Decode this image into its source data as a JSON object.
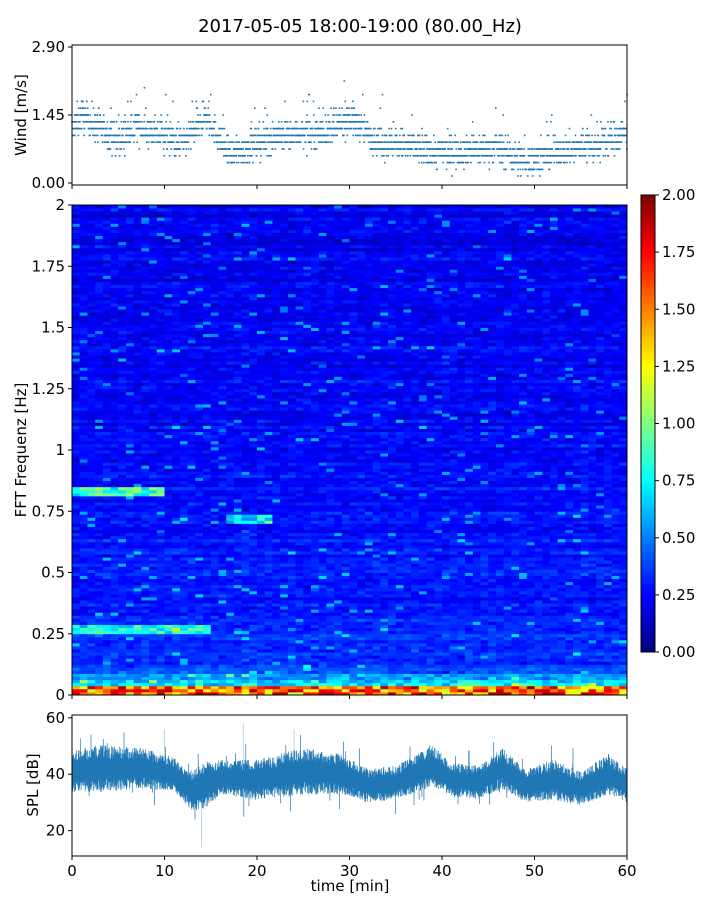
{
  "title": "2017-05-05 18:00-19:00 (80.00_Hz)",
  "colors": {
    "series": "#1f77b4",
    "colormap": "jet"
  },
  "chart_data": [
    {
      "id": "wind",
      "type": "scatter",
      "ylabel": "Wind [m/s]",
      "xlim": [
        0,
        60
      ],
      "ylim": [
        0,
        2.9
      ],
      "yticks": [
        "0.00",
        "1.45",
        "2.90"
      ],
      "grid": false,
      "series": [
        {
          "baseline_profile": [
            {
              "x": 0,
              "y": 1.1
            },
            {
              "x": 1,
              "y": 1.45
            },
            {
              "x": 5,
              "y": 0.9
            },
            {
              "x": 7,
              "y": 1.2
            },
            {
              "x": 12,
              "y": 0.85
            },
            {
              "x": 14.5,
              "y": 1.4
            },
            {
              "x": 17,
              "y": 0.6
            },
            {
              "x": 22,
              "y": 1.0
            },
            {
              "x": 28,
              "y": 1.1
            },
            {
              "x": 30,
              "y": 1.4
            },
            {
              "x": 33,
              "y": 0.9
            },
            {
              "x": 40,
              "y": 0.65
            },
            {
              "x": 46,
              "y": 0.75
            },
            {
              "x": 49,
              "y": 0.45
            },
            {
              "x": 52,
              "y": 0.65
            },
            {
              "x": 57,
              "y": 0.8
            },
            {
              "x": 60,
              "y": 1.1
            }
          ],
          "max_value": 2.9
        }
      ]
    },
    {
      "id": "spectrogram",
      "type": "heatmap",
      "ylabel": "FFT Frequenz [Hz]",
      "xlim": [
        0,
        60
      ],
      "ylim": [
        0,
        2
      ],
      "yticks": [
        "0",
        "0.25",
        "0.5",
        "0.75",
        "1",
        "1.25",
        "1.5",
        "1.75",
        "2"
      ],
      "colorbar": {
        "range": [
          0,
          2
        ],
        "ticks": [
          "0.00",
          "0.25",
          "0.50",
          "0.75",
          "1.00",
          "1.25",
          "1.50",
          "1.75",
          "2.00"
        ]
      },
      "features": [
        {
          "freq": 0.83,
          "t_start": 0,
          "t_end": 10,
          "level": 0.9
        },
        {
          "freq": 0.27,
          "t_start": 0,
          "t_end": 15,
          "level": 0.8
        },
        {
          "freq": 0.72,
          "t_start": 17,
          "t_end": 22,
          "level": 0.75
        },
        {
          "freq": 0.02,
          "t_start": 0,
          "t_end": 60,
          "level": 1.6
        }
      ]
    },
    {
      "id": "spl",
      "type": "line",
      "ylabel": "SPL [dB]",
      "xlabel": "time [min]",
      "xlim": [
        0,
        60
      ],
      "ylim": [
        11,
        61
      ],
      "yticks": [
        "20",
        "40",
        "60"
      ],
      "xticks": [
        "0",
        "10",
        "20",
        "30",
        "40",
        "50",
        "60"
      ],
      "series": [
        {
          "envelope": [
            {
              "x": 0,
              "mid": 41,
              "half": 6
            },
            {
              "x": 3,
              "mid": 42,
              "half": 7
            },
            {
              "x": 8,
              "mid": 42,
              "half": 6
            },
            {
              "x": 11,
              "mid": 40,
              "half": 5
            },
            {
              "x": 13,
              "mid": 34,
              "half": 6
            },
            {
              "x": 14.5,
              "mid": 36,
              "half": 7
            },
            {
              "x": 16,
              "mid": 39,
              "half": 5
            },
            {
              "x": 20,
              "mid": 38,
              "half": 6
            },
            {
              "x": 25,
              "mid": 41,
              "half": 7
            },
            {
              "x": 29,
              "mid": 40,
              "half": 6
            },
            {
              "x": 32,
              "mid": 36,
              "half": 5
            },
            {
              "x": 35,
              "mid": 37,
              "half": 5
            },
            {
              "x": 39,
              "mid": 43,
              "half": 6
            },
            {
              "x": 41,
              "mid": 38,
              "half": 5
            },
            {
              "x": 44,
              "mid": 37,
              "half": 5
            },
            {
              "x": 46.5,
              "mid": 42,
              "half": 6
            },
            {
              "x": 49,
              "mid": 36,
              "half": 5
            },
            {
              "x": 52,
              "mid": 38,
              "half": 6
            },
            {
              "x": 55,
              "mid": 35,
              "half": 5
            },
            {
              "x": 58,
              "mid": 40,
              "half": 6
            },
            {
              "x": 60,
              "mid": 36,
              "half": 5
            }
          ]
        }
      ]
    }
  ]
}
